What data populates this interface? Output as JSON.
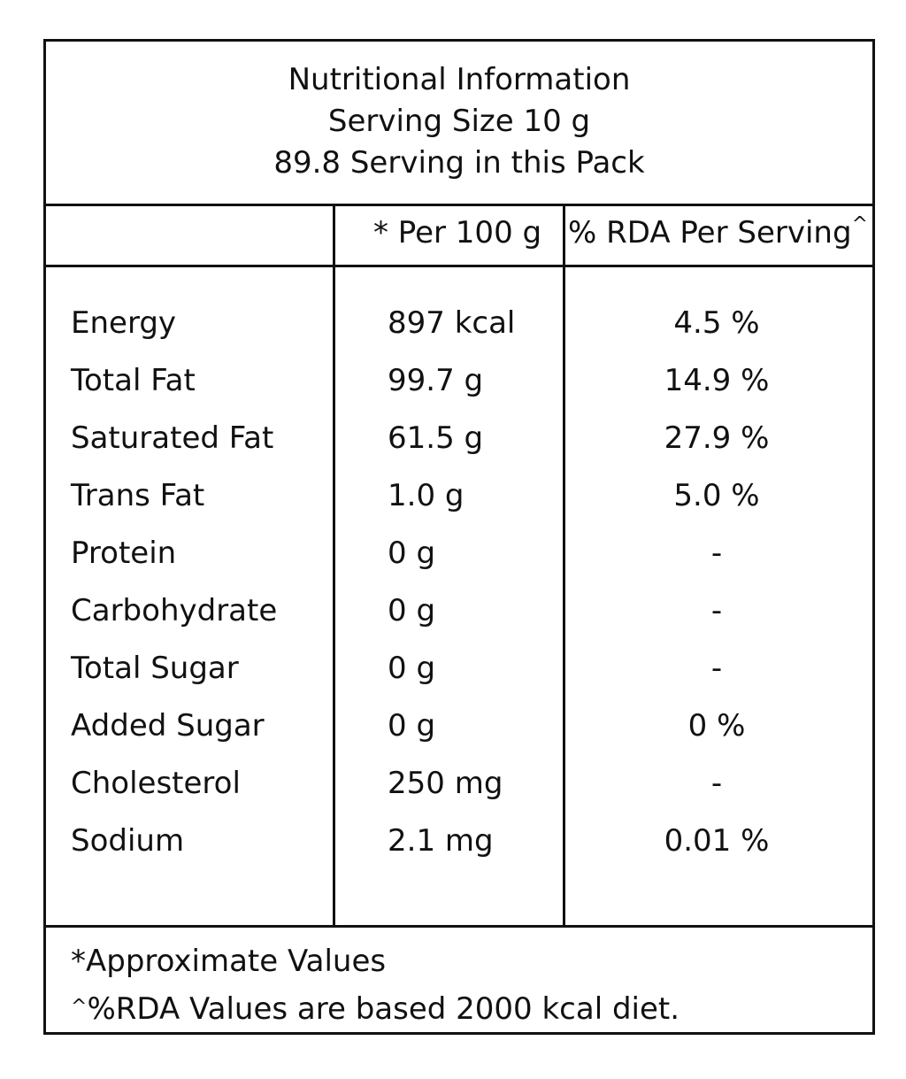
{
  "header": {
    "title": "Nutritional Information",
    "serving_size": "Serving Size 10 g",
    "servings": "89.8 Serving in this Pack"
  },
  "columns": {
    "per_100g": "* Per 100 g",
    "rda_per_serving": "% RDA Per Serving^"
  },
  "rows": [
    {
      "name": "Energy",
      "per_100g": "897 kcal",
      "rda": "4.5 %"
    },
    {
      "name": "Total Fat",
      "per_100g": "99.7 g",
      "rda": "14.9 %"
    },
    {
      "name": "Saturated Fat",
      "per_100g": "61.5 g",
      "rda": "27.9 %"
    },
    {
      "name": "Trans Fat",
      "per_100g": "1.0 g",
      "rda": "5.0 %"
    },
    {
      "name": "Protein",
      "per_100g": "0 g",
      "rda": "-"
    },
    {
      "name": "Carbohydrate",
      "per_100g": "0 g",
      "rda": "-"
    },
    {
      "name": "Total Sugar",
      "per_100g": "0 g",
      "rda": "-"
    },
    {
      "name": "Added Sugar",
      "per_100g": "0 g",
      "rda": "0 %"
    },
    {
      "name": "Cholesterol",
      "per_100g": "250 mg",
      "rda": "-"
    },
    {
      "name": "Sodium",
      "per_100g": "2.1 mg",
      "rda": "0.01 %"
    }
  ],
  "footer": {
    "note1": "*Approximate Values",
    "note2": "^%RDA Values are based 2000 kcal diet."
  }
}
